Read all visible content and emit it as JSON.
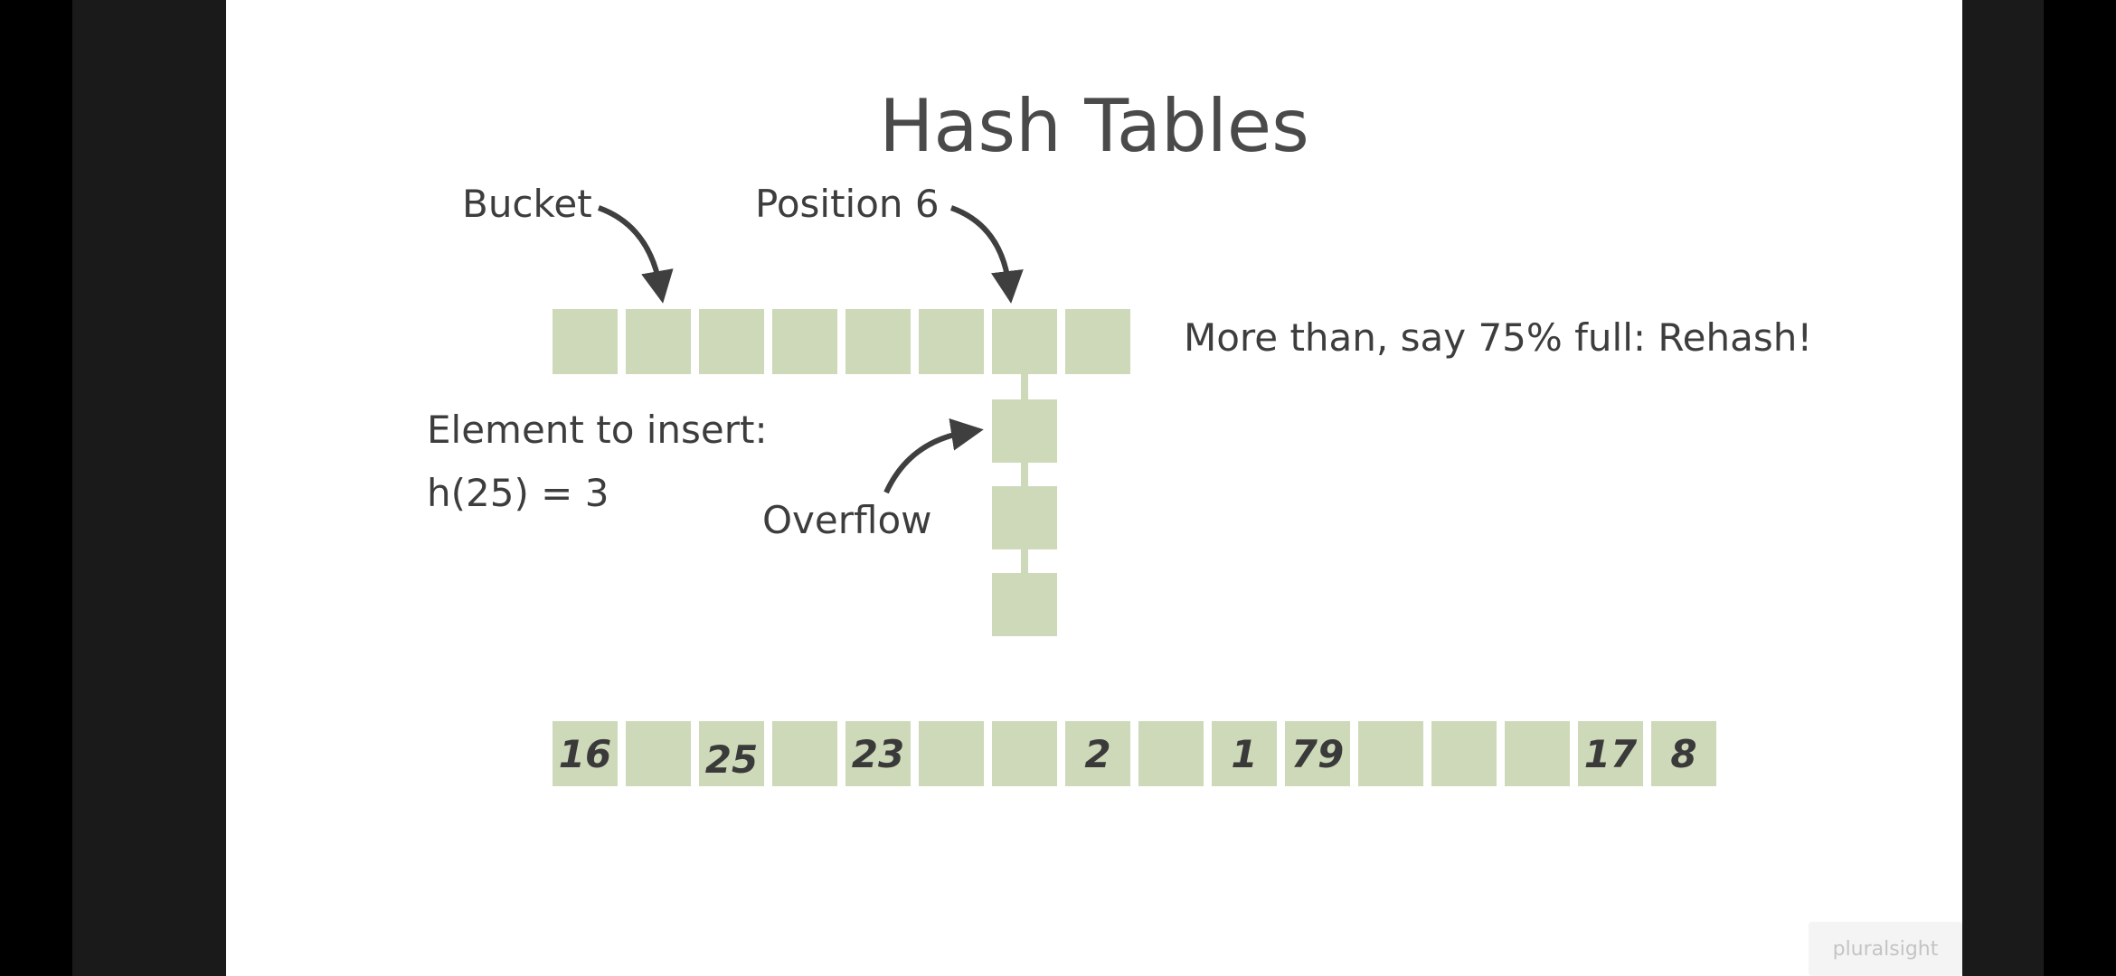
{
  "slide": {
    "title": "Hash Tables",
    "labels": {
      "bucket": "Bucket",
      "position": "Position 6",
      "rehash": "More than, say 75% full:  Rehash!",
      "element_line1": "Element to insert:",
      "element_line2": "h(25) = 3",
      "overflow": "Overflow"
    },
    "top_array_size": 8,
    "overflow_chain_length": 3,
    "bottom_array": [
      "16",
      "",
      "25",
      "",
      "23",
      "",
      "",
      "2",
      "",
      "1",
      "79",
      "",
      "",
      "",
      "17",
      "8"
    ],
    "cell_color": "#cdd9b8"
  },
  "watermark": {
    "text": "pluralsight"
  }
}
